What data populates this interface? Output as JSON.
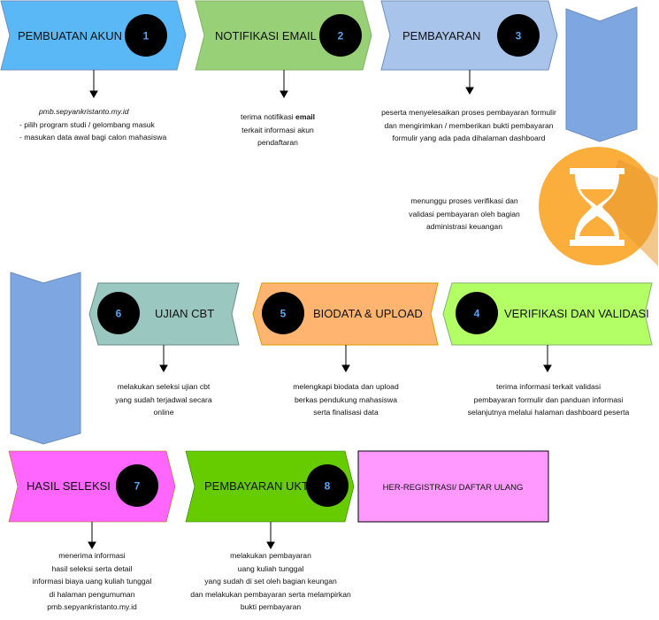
{
  "steps": [
    {
      "number": "1",
      "title": "PEMBUATAN AKUN",
      "description_lines": [
        "pmb.sepyankristanto.my.id",
        "- pilih program studi / gelombang masuk",
        "- masukan data awal bagi calon mahasiswa"
      ]
    },
    {
      "number": "2",
      "title": "NOTIFIKASI EMAIL",
      "description_lines": [
        "terima notifikasi email",
        "terkait informasi akun",
        "pendaftaran"
      ],
      "emphasis": "email"
    },
    {
      "number": "3",
      "title": "PEMBAYARAN",
      "description_lines": [
        "peserta menyelesaikan proses pembayaran formulir",
        "dan mengirimkan / memberikan bukti pembayaran",
        "formulir yang ada pada dihalaman dashboard"
      ]
    },
    {
      "number": "4",
      "title": "VERIFIKASI DAN VALIDASI",
      "description_lines": [
        "terima informasi terkait validasi",
        "pembayaran formulir dan panduan informasi",
        "selanjutnya melalui halaman dashboard peserta"
      ]
    },
    {
      "number": "5",
      "title": "BIODATA & UPLOAD",
      "description_lines": [
        "melengkapi biodata dan upload",
        "berkas pendukung mahasiswa",
        "serta finalisasi data"
      ]
    },
    {
      "number": "6",
      "title": "UJIAN CBT",
      "description_lines": [
        "melakukan seleksi ujian cbt",
        "yang sudah terjadwal secara",
        "online"
      ]
    },
    {
      "number": "7",
      "title": "HASIL SELEKSI",
      "description_lines": [
        "menerima informasi",
        "hasil seleksi serta detail",
        "informasi biaya uang kuliah tunggal",
        "di halaman pengumuman",
        "pmb.sepyankristanto.my.id"
      ]
    },
    {
      "number": "8",
      "title": "PEMBAYARAN UKT",
      "description_lines": [
        "melakukan pembayaran",
        "uang kuliah tunggal",
        "yang sudah di set oleh bagian keungan",
        "dan melakukan pembayaran serta melampirkan",
        "bukti pembayaran"
      ]
    }
  ],
  "final_step": {
    "title": "HER-REGISTRASI/ DAFTAR ULANG"
  },
  "waiting": {
    "icon": "hourglass-icon",
    "description_lines": [
      "menunggu proses verifikasi dan",
      "validasi pembayaran oleh bagian",
      "administrasi keuangan"
    ]
  },
  "colors": {
    "step1": "#5bb8f7",
    "step2": "#97d077",
    "step3": "#a9c4eb",
    "step4": "#b3ff66",
    "step5": "#ffb570",
    "step6": "#9ac7bf",
    "step7": "#ff66ff",
    "step8": "#66cc00",
    "final": "#ff99ff",
    "connector": "#7ea6e0",
    "badge": "#000000",
    "badge_text": "#5aa5f0",
    "hourglass_circle": "#fbae3c"
  }
}
